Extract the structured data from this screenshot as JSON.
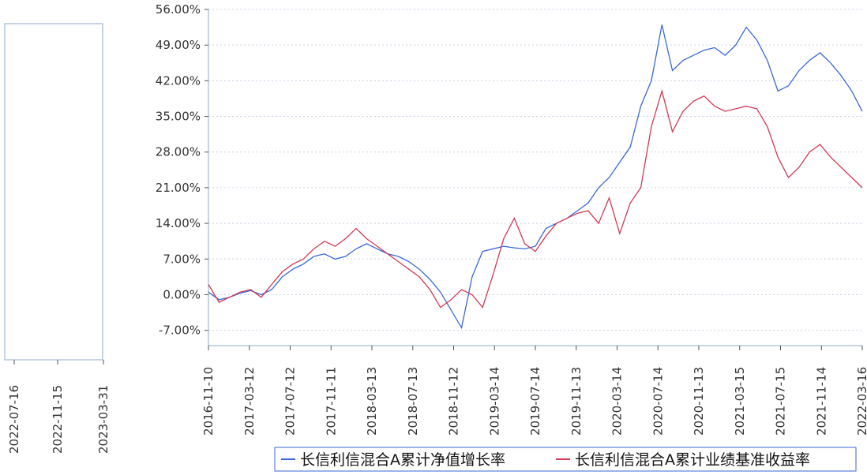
{
  "chart_data": {
    "type": "line",
    "title": "",
    "xlabel": "",
    "ylabel": "",
    "ylim": [
      -10,
      56
    ],
    "y_ticks": [
      "-7.00%",
      "0.00%",
      "7.00%",
      "14.00%",
      "21.00%",
      "28.00%",
      "35.00%",
      "42.00%",
      "49.00%",
      "56.00%"
    ],
    "x_ticks": [
      "2016-11-10",
      "2017-03-12",
      "2017-07-12",
      "2017-11-11",
      "2018-03-13",
      "2018-07-13",
      "2018-11-12",
      "2019-03-14",
      "2019-07-14",
      "2019-11-13",
      "2020-03-14",
      "2020-07-14",
      "2020-11-13",
      "2021-03-15",
      "2021-07-15",
      "2021-11-14",
      "2022-03-16"
    ],
    "side_x_ticks": [
      "2022-07-16",
      "2022-11-15",
      "2023-03-31"
    ],
    "grid": true,
    "legend_position": "bottom-right",
    "series": [
      {
        "name": "长信利信混合A累计净值增长率",
        "color": "#3a67d8",
        "values": [
          0.5,
          -1.0,
          -0.5,
          0.3,
          0.8,
          0.0,
          1.0,
          3.5,
          5.0,
          6.0,
          7.5,
          8.0,
          7.0,
          7.5,
          9.0,
          10.0,
          9.0,
          8.0,
          7.5,
          6.5,
          5.0,
          3.0,
          0.5,
          -3.0,
          -6.5,
          3.5,
          8.5,
          9.0,
          9.5,
          9.2,
          9.0,
          9.5,
          13.0,
          14.0,
          15.0,
          16.5,
          18.0,
          21.0,
          23.0,
          26.0,
          29.0,
          37.0,
          42.0,
          53.0,
          44.0,
          46.0,
          47.0,
          48.0,
          48.5,
          47.0,
          49.0,
          52.5,
          50.0,
          46.0,
          40.0,
          41.0,
          44.0,
          46.0,
          47.5,
          45.5,
          43.0,
          40.0,
          36.0
        ]
      },
      {
        "name": "长信利信混合A累计业绩基准收益率",
        "color": "#d23a55",
        "values": [
          2.0,
          -1.5,
          -0.5,
          0.5,
          1.0,
          -0.5,
          2.0,
          4.5,
          6.0,
          7.0,
          9.0,
          10.5,
          9.5,
          11.0,
          13.0,
          11.0,
          9.5,
          8.0,
          6.5,
          5.0,
          3.5,
          1.0,
          -2.5,
          -1.0,
          1.0,
          0.0,
          -2.5,
          4.0,
          11.0,
          15.0,
          10.0,
          8.5,
          11.5,
          14.0,
          15.0,
          16.0,
          16.5,
          14.0,
          19.0,
          12.0,
          18.0,
          21.0,
          33.0,
          40.0,
          32.0,
          36.0,
          38.0,
          39.0,
          37.0,
          36.0,
          36.5,
          37.0,
          36.5,
          33.0,
          27.0,
          23.0,
          25.0,
          28.0,
          29.5,
          27.0,
          25.0,
          23.0,
          21.0
        ]
      }
    ]
  }
}
